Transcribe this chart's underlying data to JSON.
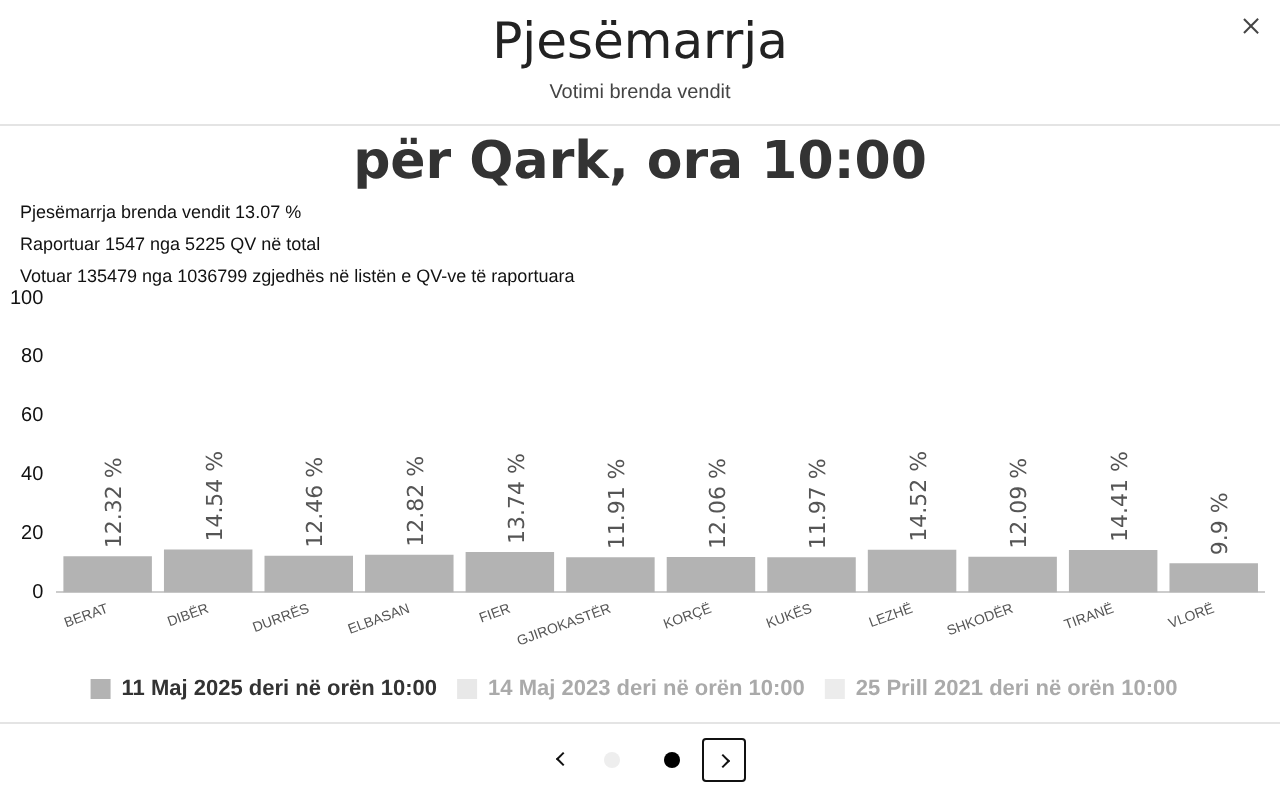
{
  "chart_data": {
    "type": "bar",
    "title": "për Qark, ora 10:00",
    "annotations": [
      "Pjesëmarrja",
      "Votimi brenda vendit",
      "Pjesëmarrja brenda vendit 13.07 %",
      "Raportuar 1547 nga 5225 QV në total",
      "Votuar 135479 nga 1036799 zgjedhës në listën e QV-ve të raportuara"
    ],
    "categories": [
      "BERAT",
      "DIBËR",
      "DURRËS",
      "ELBASAN",
      "FIER",
      "GJIROKASTËR",
      "KORÇË",
      "KUKËS",
      "LEZHË",
      "SHKODËR",
      "TIRANË",
      "VLORË"
    ],
    "series": [
      {
        "name": "11 Maj 2025 deri në orën 10:00",
        "color": "#b3b3b3",
        "values": [
          12.32,
          14.54,
          12.46,
          12.82,
          13.74,
          11.91,
          12.06,
          11.97,
          14.52,
          12.09,
          14.41,
          9.9
        ],
        "value_labels": [
          "12.32 %",
          "14.54 %",
          "12.46 %",
          "12.82 %",
          "13.74 %",
          "11.91 %",
          "12.06 %",
          "11.97 %",
          "14.52 %",
          "12.09 %",
          "14.41 %",
          "9.9 %"
        ]
      },
      {
        "name": "14 Maj 2023 deri në orën 10:00",
        "color": "#e8e8e8",
        "values": [
          null,
          null,
          null,
          null,
          null,
          null,
          null,
          null,
          null,
          null,
          null,
          null
        ]
      },
      {
        "name": "25 Prill 2021 deri në orën 10:00",
        "color": "#ececec",
        "values": [
          null,
          null,
          null,
          null,
          null,
          null,
          null,
          null,
          null,
          null,
          null,
          null
        ]
      }
    ],
    "ylim": [
      0,
      100
    ],
    "yticks": [
      0,
      20,
      40,
      60,
      80,
      100
    ],
    "grid": false,
    "legend": "bottom"
  }
}
